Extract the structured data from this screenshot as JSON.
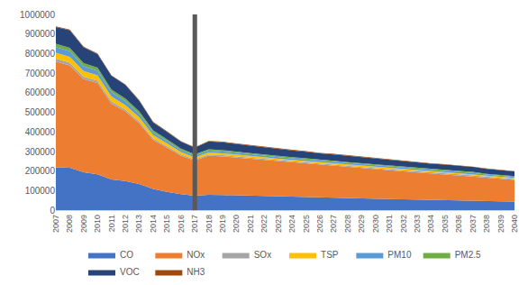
{
  "chart_data": {
    "type": "area",
    "stacked": true,
    "grid": false,
    "legend": "bottom",
    "categories": [
      "2007",
      "2008",
      "2009",
      "2010",
      "2011",
      "2012",
      "2013",
      "2014",
      "2015",
      "2016",
      "2017",
      "2018",
      "2019",
      "2020",
      "2021",
      "2022",
      "2023",
      "2024",
      "2025",
      "2026",
      "2027",
      "2028",
      "2029",
      "2030",
      "2031",
      "2032",
      "2033",
      "2034",
      "2035",
      "2036",
      "2037",
      "2038",
      "2039",
      "2040"
    ],
    "vertical_line": "2017",
    "ylim": [
      0,
      1000000
    ],
    "yticks": [
      0,
      100000,
      200000,
      300000,
      400000,
      500000,
      600000,
      700000,
      800000,
      900000,
      1000000
    ],
    "series": [
      {
        "name": "CO",
        "color": "#4472C4",
        "values": [
          220000,
          218000,
          195000,
          185000,
          158000,
          150000,
          135000,
          110000,
          95000,
          83000,
          75000,
          80000,
          79000,
          77000,
          75000,
          74000,
          72000,
          70000,
          68000,
          66000,
          65000,
          63000,
          62000,
          60000,
          58000,
          57000,
          55000,
          54000,
          52000,
          51000,
          49000,
          48000,
          46000,
          45000
        ]
      },
      {
        "name": "NOx",
        "color": "#ED7D31",
        "values": [
          540000,
          522000,
          475000,
          465000,
          387000,
          355000,
          310000,
          250000,
          225000,
          197000,
          180000,
          200000,
          197000,
          193000,
          188000,
          183000,
          178000,
          174000,
          170000,
          166000,
          162000,
          158000,
          154000,
          150000,
          147000,
          143000,
          140000,
          136000,
          133000,
          129000,
          126000,
          120000,
          116000,
          111000
        ]
      },
      {
        "name": "SOx",
        "color": "#A5A5A5",
        "values": [
          15000,
          14000,
          13000,
          12000,
          11000,
          10000,
          9000,
          8000,
          7000,
          6000,
          6000,
          6000,
          6000,
          6000,
          6000,
          6000,
          5000,
          5000,
          5000,
          5000,
          5000,
          5000,
          5000,
          5000,
          5000,
          5000,
          4000,
          4000,
          4000,
          4000,
          4000,
          4000,
          4000,
          4000
        ]
      },
      {
        "name": "TSP",
        "color": "#FFC000",
        "values": [
          30000,
          30000,
          28000,
          27000,
          25000,
          23000,
          21000,
          17000,
          15000,
          12000,
          10000,
          10000,
          10000,
          10000,
          9000,
          9000,
          9000,
          9000,
          9000,
          8000,
          8000,
          8000,
          8000,
          8000,
          8000,
          7000,
          7000,
          7000,
          7000,
          7000,
          7000,
          6000,
          6000,
          6000
        ]
      },
      {
        "name": "PM10",
        "color": "#5B9BD5",
        "values": [
          28000,
          28000,
          25000,
          24000,
          22000,
          20000,
          18000,
          14000,
          12000,
          10000,
          9000,
          9000,
          9000,
          9000,
          8000,
          8000,
          8000,
          8000,
          8000,
          7000,
          7000,
          7000,
          7000,
          7000,
          7000,
          6000,
          6000,
          6000,
          6000,
          6000,
          6000,
          5000,
          5000,
          5000
        ]
      },
      {
        "name": "PM2.5",
        "color": "#70AD47",
        "values": [
          18000,
          18000,
          16000,
          15000,
          14000,
          13000,
          12000,
          10000,
          9000,
          8000,
          7000,
          7000,
          7000,
          7000,
          7000,
          6000,
          6000,
          6000,
          6000,
          6000,
          6000,
          6000,
          5000,
          5000,
          5000,
          5000,
          5000,
          5000,
          5000,
          5000,
          5000,
          4000,
          4000,
          4000
        ]
      },
      {
        "name": "VOC",
        "color": "#264478",
        "values": [
          85000,
          90000,
          80000,
          70000,
          70000,
          70000,
          55000,
          40000,
          38000,
          35000,
          33000,
          40000,
          40000,
          39000,
          38000,
          37000,
          36000,
          35000,
          34000,
          33000,
          33000,
          32000,
          31000,
          30000,
          30000,
          29000,
          28000,
          27000,
          27000,
          26000,
          25000,
          25000,
          24000,
          24000
        ]
      },
      {
        "name": "NH3",
        "color": "#9E480E",
        "values": [
          3000,
          3000,
          3000,
          3000,
          3000,
          3000,
          3000,
          3000,
          3000,
          3000,
          3000,
          3000,
          3000,
          3000,
          3000,
          3000,
          3000,
          3000,
          3000,
          3000,
          3000,
          3000,
          2000,
          2000,
          2000,
          2000,
          2000,
          2000,
          2000,
          2000,
          2000,
          2000,
          2000,
          2000
        ]
      }
    ]
  }
}
